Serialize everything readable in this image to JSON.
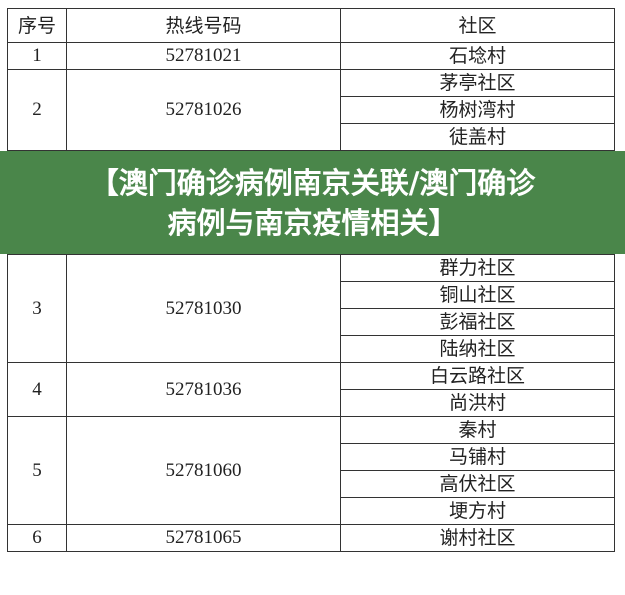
{
  "table": {
    "headers": [
      "序号",
      "热线号码",
      "社区"
    ],
    "rows": [
      {
        "id": "1",
        "phone": "52781021",
        "communities": [
          "石埝村"
        ]
      },
      {
        "id": "2",
        "phone": "52781026",
        "communities": [
          "茅亭社区",
          "杨树湾村",
          "徒盖村"
        ]
      },
      {
        "id": "3",
        "phone": "52781030",
        "communities": [
          "群力社区",
          "铜山社区",
          "彭福社区",
          "陆纳社区"
        ]
      },
      {
        "id": "4",
        "phone": "52781036",
        "communities": [
          "白云路社区",
          "尚洪村"
        ]
      },
      {
        "id": "5",
        "phone": "52781060",
        "communities": [
          "秦村",
          "马铺村",
          "高伏社区",
          "埂方村"
        ]
      },
      {
        "id": "6",
        "phone": "52781065",
        "communities": [
          "谢村社区"
        ]
      }
    ]
  },
  "banner": {
    "line1": "【澳门确诊病例南京关联/澳门确诊",
    "line2": "病例与南京疫情相关】",
    "color": "#4a864a"
  }
}
